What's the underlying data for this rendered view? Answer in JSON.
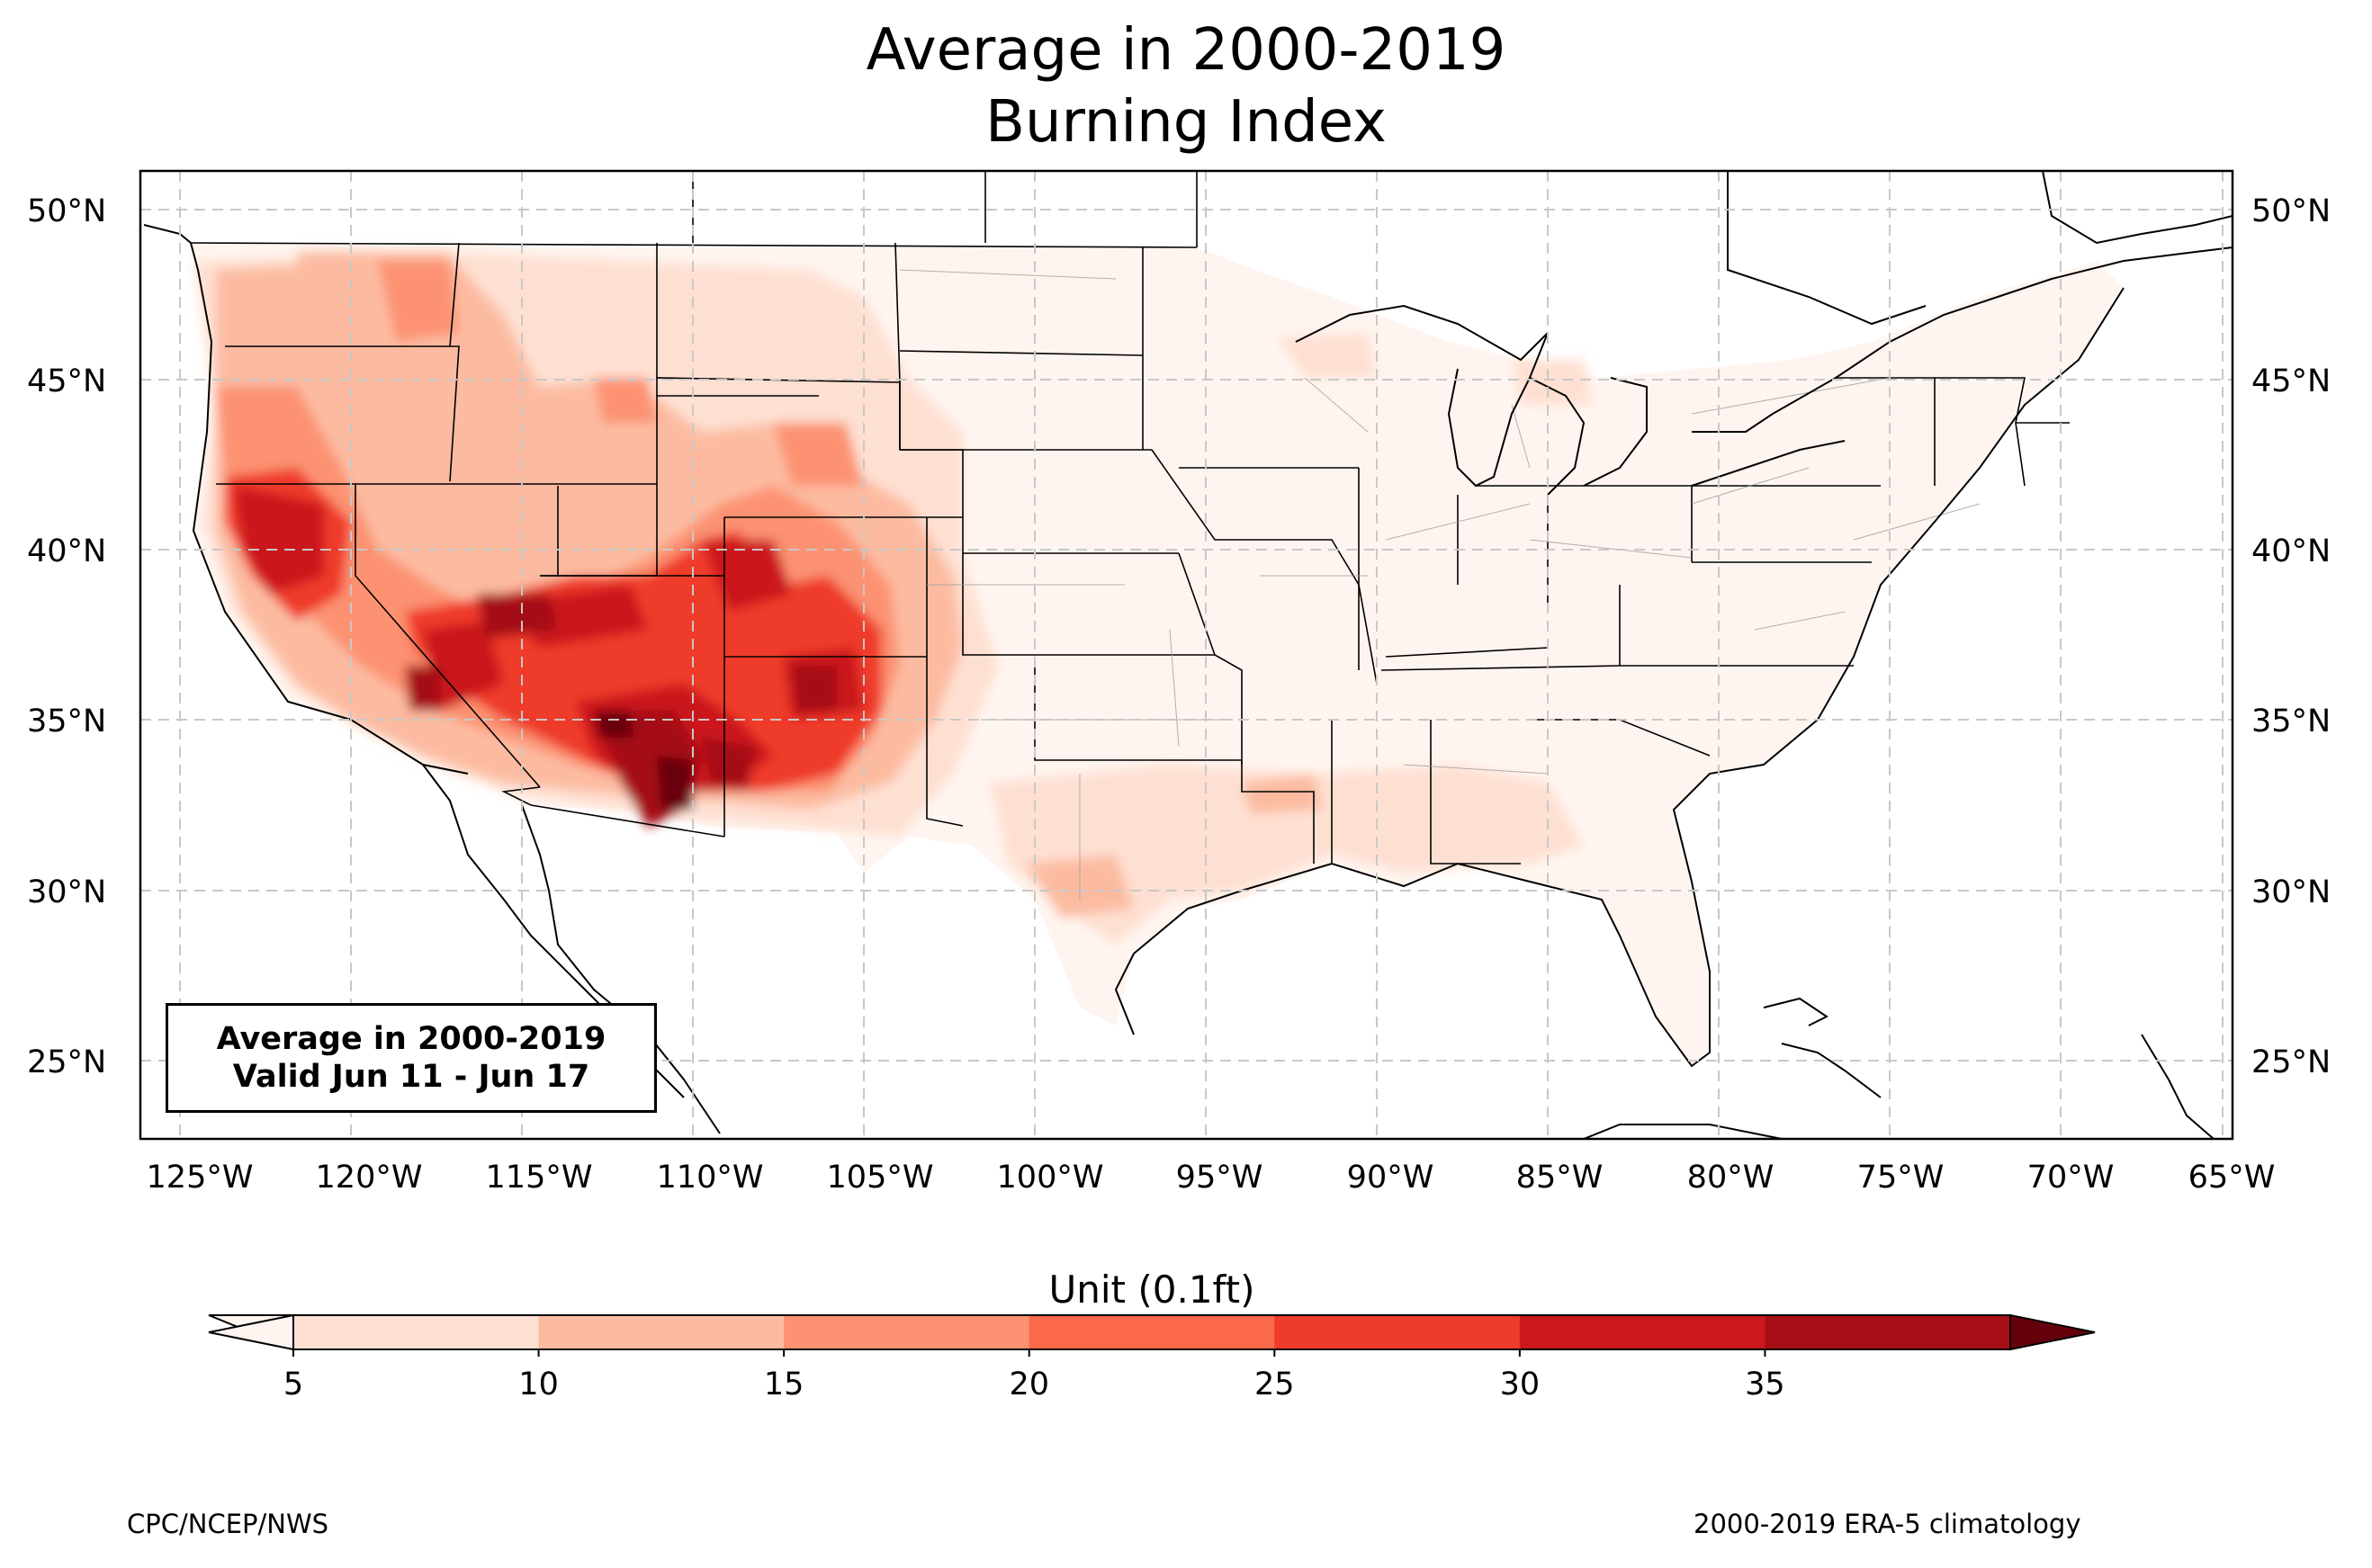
{
  "title": {
    "line1": "Average in 2000-2019",
    "line2": "Burning Index"
  },
  "lat_labels": [
    "50°N",
    "45°N",
    "40°N",
    "35°N",
    "30°N",
    "25°N"
  ],
  "lon_labels": [
    "125°W",
    "120°W",
    "115°W",
    "110°W",
    "105°W",
    "100°W",
    "95°W",
    "90°W",
    "85°W",
    "80°W",
    "75°W",
    "70°W",
    "65°W"
  ],
  "info_box": {
    "line1": "Average in 2000-2019",
    "line2": "Valid Jun 11 - Jun 17"
  },
  "colorbar": {
    "title": "Unit (0.1ft)",
    "ticks": [
      "5",
      "10",
      "15",
      "20",
      "25",
      "30",
      "35"
    ],
    "colors": [
      "#fee0d2",
      "#fcbba1",
      "#fc9272",
      "#fb6a4a",
      "#ef3b2c",
      "#cb181d",
      "#a50f15"
    ],
    "under_color": "#fff5f0",
    "over_color": "#67000d"
  },
  "footer": {
    "left": "CPC/NCEP/NWS",
    "right": "2000-2019 ERA-5 climatology"
  }
}
